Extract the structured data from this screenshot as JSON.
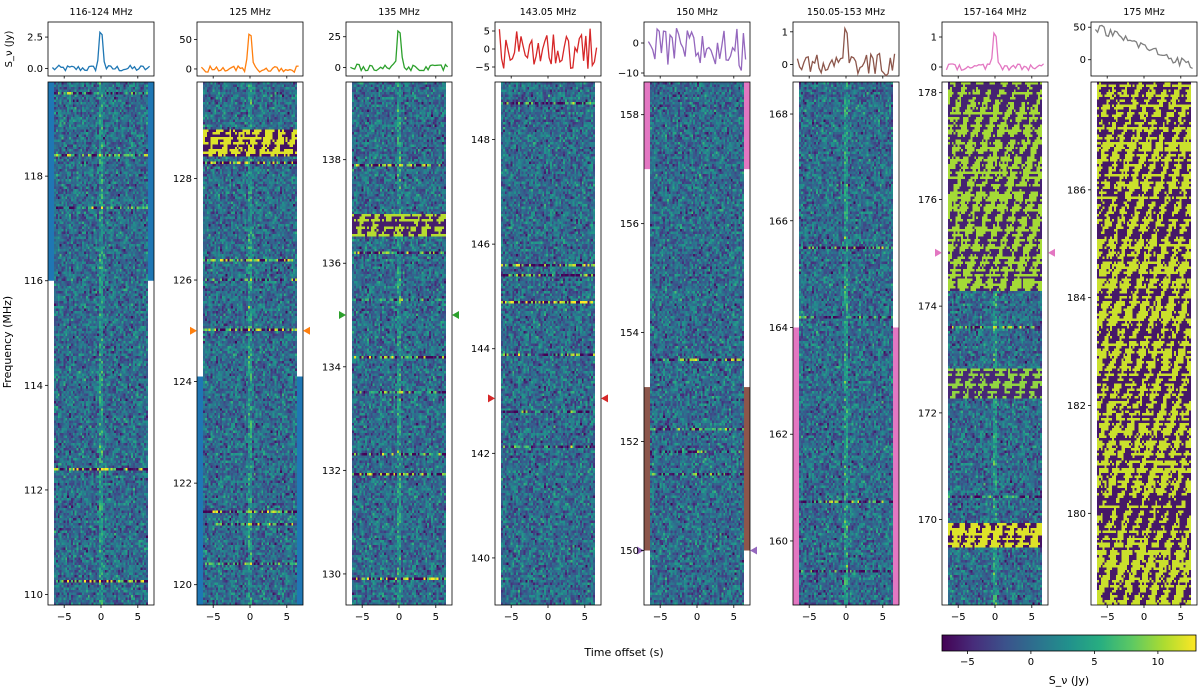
{
  "chart_data": {
    "type": "multi-panel dynamic spectra with light curves",
    "ylabel": "Frequency (MHz)",
    "xlabel": "Time offset (s)",
    "lc_ylabel": "S_ν (Jy)",
    "xlim": [
      -7.2,
      7.2
    ],
    "xticks": [
      -5,
      0,
      5
    ],
    "colorbar": {
      "label": "S_ν (Jy)",
      "range": [
        -7,
        13
      ],
      "ticks": [
        -5,
        0,
        5,
        10
      ],
      "colormap": "viridis"
    },
    "panels": [
      {
        "title": "116-124 MHz",
        "color": "#1f77b4",
        "lc_ylim": [
          -0.6,
          3.7
        ],
        "lc_yticks": [
          0.0,
          2.5
        ],
        "lc_ytick_labels": [
          "0.0",
          "2.5"
        ],
        "lc_peak": 3.3,
        "ylim": [
          109.8,
          119.8
        ],
        "yticks": [
          110,
          112,
          114,
          116,
          118
        ],
        "marker": null,
        "side_bands": [
          {
            "from": 116.0,
            "to": 119.8,
            "color": "#1f77b4",
            "sides": "both"
          }
        ],
        "rfi_rows": [
          {
            "f": 119.6,
            "amp": 0.5
          },
          {
            "f": 118.4,
            "amp": 0.6
          },
          {
            "f": 117.4,
            "amp": 0.5
          },
          {
            "f": 112.4,
            "amp": 0.8
          },
          {
            "f": 110.25,
            "amp": 0.8
          }
        ],
        "rfi_blocks": []
      },
      {
        "title": "125 MHz",
        "color": "#ff7f0e",
        "lc_ylim": [
          -12,
          80
        ],
        "lc_yticks": [
          0,
          50
        ],
        "lc_ytick_labels": [
          "0",
          "50"
        ],
        "lc_peak": 72,
        "ylim": [
          119.6,
          129.9
        ],
        "yticks": [
          120,
          122,
          124,
          126,
          128
        ],
        "marker": 125.0,
        "side_bands": [
          {
            "from": 119.6,
            "to": 124.1,
            "color": "#1f77b4",
            "sides": "both"
          }
        ],
        "rfi_rows": [
          {
            "f": 128.3,
            "amp": 0.8
          },
          {
            "f": 126.4,
            "amp": 0.7
          },
          {
            "f": 126.0,
            "amp": 0.5
          },
          {
            "f": 125.0,
            "amp": 0.7
          },
          {
            "f": 121.4,
            "amp": 0.7
          },
          {
            "f": 121.2,
            "amp": 0.6
          },
          {
            "f": 120.4,
            "amp": 0.5
          }
        ],
        "rfi_blocks": [
          {
            "f0": 128.45,
            "f1": 128.95,
            "level": 1.0
          }
        ]
      },
      {
        "title": "135 MHz",
        "color": "#2ca02c",
        "lc_ylim": [
          -7,
          37
        ],
        "lc_yticks": [
          0,
          25
        ],
        "lc_ytick_labels": [
          "0",
          "25"
        ],
        "lc_peak": 34,
        "ylim": [
          129.4,
          139.5
        ],
        "yticks": [
          130,
          132,
          134,
          136,
          138
        ],
        "marker": 135.0,
        "side_bands": [],
        "rfi_rows": [
          {
            "f": 137.9,
            "amp": 0.7
          },
          {
            "f": 136.2,
            "amp": 0.6
          },
          {
            "f": 135.3,
            "amp": 0.5
          },
          {
            "f": 134.2,
            "amp": 0.6
          },
          {
            "f": 133.5,
            "amp": 0.5
          },
          {
            "f": 132.3,
            "amp": 0.6
          },
          {
            "f": 131.9,
            "amp": 0.7
          },
          {
            "f": 129.9,
            "amp": 0.8
          }
        ],
        "rfi_blocks": [
          {
            "f0": 136.55,
            "f1": 136.95,
            "level": 0.9
          }
        ]
      },
      {
        "title": "143.05 MHz",
        "color": "#d62728",
        "lc_ylim": [
          -7.5,
          7.5
        ],
        "lc_yticks": [
          -5,
          0,
          5
        ],
        "lc_ytick_labels": [
          "−5",
          "0",
          "5"
        ],
        "lc_peak": 6,
        "ylim": [
          139.1,
          149.1
        ],
        "yticks": [
          140,
          142,
          144,
          146,
          148
        ],
        "marker": 143.05,
        "side_bands": [],
        "rfi_rows": [
          {
            "f": 148.7,
            "amp": 0.6
          },
          {
            "f": 145.6,
            "amp": 0.7
          },
          {
            "f": 145.4,
            "amp": 0.6
          },
          {
            "f": 144.9,
            "amp": 0.9
          },
          {
            "f": 143.9,
            "amp": 0.6
          },
          {
            "f": 142.8,
            "amp": 0.5
          },
          {
            "f": 142.1,
            "amp": 0.5
          }
        ],
        "rfi_blocks": []
      },
      {
        "title": "150 MHz",
        "color": "#9467bd",
        "lc_ylim": [
          -11,
          7
        ],
        "lc_yticks": [
          -10,
          0
        ],
        "lc_ytick_labels": [
          "−10",
          "0"
        ],
        "lc_peak": 6,
        "ylim": [
          149.0,
          158.6
        ],
        "yticks": [
          150,
          152,
          154,
          156,
          158
        ],
        "marker": 150.0,
        "side_bands": [
          {
            "from": 150.0,
            "to": 153.0,
            "color": "#8c564b",
            "sides": "both"
          },
          {
            "from": 157.0,
            "to": 158.6,
            "color": "#e377c2",
            "sides": "both"
          }
        ],
        "rfi_rows": [
          {
            "f": 153.5,
            "amp": 0.7
          },
          {
            "f": 152.2,
            "amp": 0.6
          },
          {
            "f": 151.8,
            "amp": 0.5
          },
          {
            "f": 151.4,
            "amp": 0.5
          }
        ],
        "rfi_blocks": []
      },
      {
        "title": "150.05-153 MHz",
        "color": "#8c564b",
        "lc_ylim": [
          -0.35,
          1.3
        ],
        "lc_yticks": [
          0,
          1
        ],
        "lc_ytick_labels": [
          "0",
          "1"
        ],
        "lc_peak": 1.1,
        "ylim": [
          158.8,
          168.6
        ],
        "yticks": [
          160,
          162,
          164,
          166,
          168
        ],
        "marker": null,
        "side_bands": [
          {
            "from": 158.8,
            "to": 164.0,
            "color": "#e377c2",
            "sides": "both"
          }
        ],
        "rfi_rows": [
          {
            "f": 165.5,
            "amp": 0.6
          },
          {
            "f": 164.2,
            "amp": 0.5
          },
          {
            "f": 160.7,
            "amp": 0.6
          },
          {
            "f": 159.4,
            "amp": 0.5
          }
        ],
        "rfi_blocks": []
      },
      {
        "title": "157-164 MHz",
        "color": "#e377c2",
        "lc_ylim": [
          -0.3,
          1.5
        ],
        "lc_yticks": [
          0,
          1
        ],
        "lc_ytick_labels": [
          "0",
          "1"
        ],
        "lc_peak": 1.3,
        "ylim": [
          168.4,
          178.2
        ],
        "yticks": [
          170,
          172,
          174,
          176,
          178
        ],
        "marker": 175.0,
        "side_bands": [],
        "rfi_rows": [
          {
            "f": 173.6,
            "amp": 0.6
          },
          {
            "f": 172.5,
            "amp": 0.8
          },
          {
            "f": 170.4,
            "amp": 0.5
          }
        ],
        "rfi_blocks": [
          {
            "f0": 174.3,
            "f1": 178.2,
            "level": 0.85
          },
          {
            "f0": 169.5,
            "f1": 169.9,
            "level": 1.0
          },
          {
            "f0": 172.3,
            "f1": 172.8,
            "level": 0.8
          }
        ]
      },
      {
        "title": "175 MHz",
        "color": "#7f7f7f",
        "lc_ylim": [
          -25,
          58
        ],
        "lc_yticks": [
          0,
          50
        ],
        "lc_ytick_labels": [
          "0",
          "50"
        ],
        "lc_peak": 50,
        "ylim": [
          178.3,
          188.0
        ],
        "yticks": [
          180,
          182,
          184,
          186
        ],
        "marker": null,
        "side_bands": [],
        "rfi_rows": [],
        "rfi_blocks": [
          {
            "f0": 178.3,
            "f1": 188.0,
            "level": 0.95
          }
        ]
      }
    ]
  }
}
